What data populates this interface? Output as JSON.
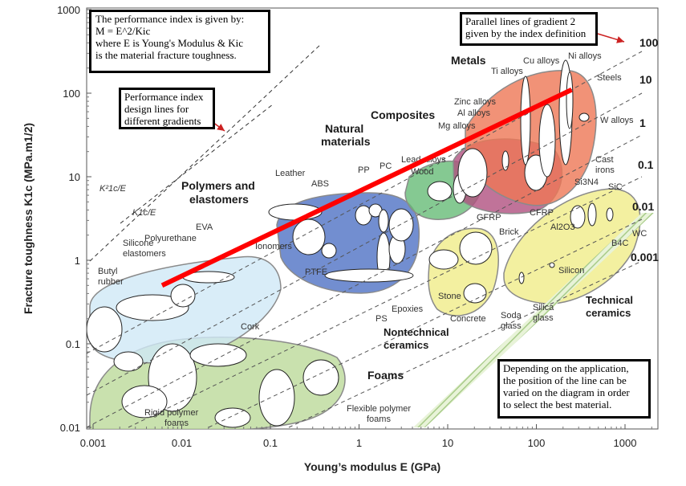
{
  "chart_data": {
    "type": "scatter",
    "title": "",
    "xlabel": "Young’s modulus E (GPa)",
    "ylabel": "Fracture toughness K1c (MPa.m1/2)",
    "xscale": "log",
    "yscale": "log",
    "xlim": [
      0.001,
      3000
    ],
    "ylim": [
      0.008,
      1100
    ],
    "x_ticks": [
      "0.001",
      "0.01",
      "0.1",
      "1",
      "10",
      "100",
      "1000"
    ],
    "y_ticks": [
      "0.01",
      "0.1",
      "1",
      "10",
      "100",
      "1000"
    ],
    "grid": false,
    "guide_line_labels": [
      "100",
      "10",
      "1",
      "0.1",
      "0.01",
      "0.001"
    ],
    "design_line_labels": [
      "K²1c/E",
      "K1c/E"
    ],
    "selection_line": {
      "color": "#ff0000",
      "x": [
        0.006,
        250
      ],
      "y": [
        0.5,
        110
      ]
    },
    "families": [
      {
        "name": "Metals",
        "color": "#ee7755"
      },
      {
        "name": "Composites",
        "color": "#b05080"
      },
      {
        "name": "Natural materials",
        "color": "#66bb77"
      },
      {
        "name": "Polymers and elastomers",
        "color": "#4f72c4"
      },
      {
        "name": "Technical ceramics",
        "color": "#f0ec88"
      },
      {
        "name": "Nontechnical ceramics",
        "color": "#f0ec88"
      },
      {
        "name": "Foams",
        "color": "#bcd99a"
      }
    ],
    "materials": [
      "Ti alloys",
      "Cu alloys",
      "Ni alloys",
      "Steels",
      "Zinc alloys",
      "Al alloys",
      "Mg alloys",
      "Lead alloys",
      "W alloys",
      "Cast irons",
      "Wood",
      "GFRP",
      "CFRP",
      "Leather",
      "PP",
      "PC",
      "ABS",
      "EVA",
      "Polyurethane",
      "Silicone elastomers",
      "Butyl rubber",
      "Ionomers",
      "PTFE",
      "PS",
      "Epoxies",
      "Si3N4",
      "SiC",
      "Al2O3",
      "B4C",
      "WC",
      "Silicon",
      "Brick",
      "Stone",
      "Concrete",
      "Soda glass",
      "Silica glass",
      "Cork",
      "Rigid polymer foams",
      "Flexible polymer foams"
    ]
  },
  "annotations": {
    "index_box": "The performance index is given by:\nM = E^2/Kic\nwhere E is Young's Modulus & Kic\nis the material fracture toughness.",
    "design_lines_box": "Performance index\ndesign lines for\ndifferent gradients",
    "parallel_box": "Parallel lines of gradient 2\ngiven by the index definition",
    "application_box": "Depending on the application,\nthe position of the line can be\nvaried on the diagram in order\nto select the best material."
  },
  "colors": {
    "selection_line": "#ff0000",
    "arrow": "#cc2222",
    "guide_line": "#555555"
  }
}
